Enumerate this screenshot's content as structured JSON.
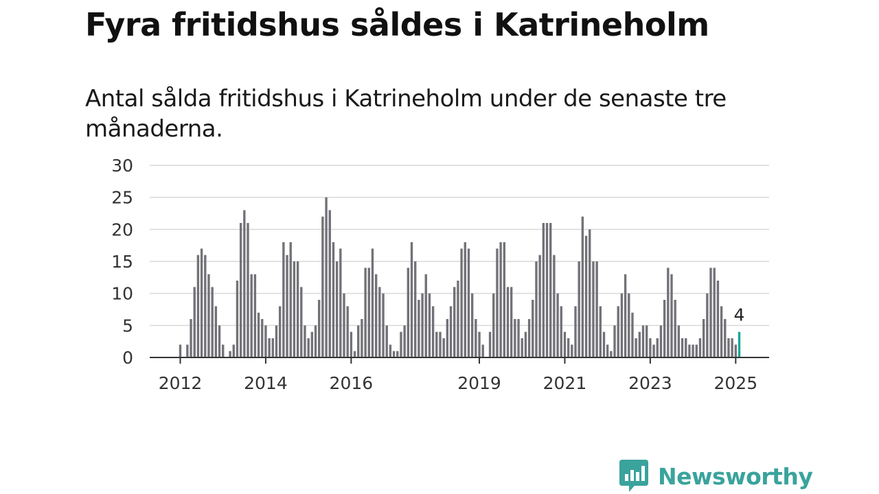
{
  "title": "Fyra fritidshus såldes i Katrineholm",
  "subtitle": "Antal sålda fritidshus i Katrineholm under de senaste tre månaderna.",
  "brand": {
    "name": "Newsworthy",
    "color": "#3aa39c"
  },
  "chart_data": {
    "type": "bar",
    "x_start": "2012-01",
    "x_end": "2025-01",
    "ylim": [
      0,
      30
    ],
    "yticks": [
      0,
      5,
      10,
      15,
      20,
      25,
      30
    ],
    "xticks": [
      "2012",
      "2014",
      "2016",
      "2019",
      "2021",
      "2023",
      "2025"
    ],
    "grid": true,
    "bar_color": "#737278",
    "highlight_color": "#1aa59a",
    "highlight_label": "4",
    "values": [
      2,
      0,
      2,
      6,
      11,
      16,
      17,
      16,
      13,
      11,
      8,
      5,
      2,
      0,
      1,
      2,
      12,
      21,
      23,
      21,
      13,
      13,
      7,
      6,
      5,
      3,
      3,
      5,
      8,
      18,
      16,
      18,
      15,
      15,
      11,
      5,
      3,
      4,
      5,
      9,
      22,
      25,
      23,
      18,
      15,
      17,
      10,
      8,
      4,
      1,
      5,
      6,
      14,
      14,
      17,
      13,
      11,
      10,
      5,
      2,
      1,
      1,
      4,
      5,
      14,
      18,
      15,
      9,
      10,
      13,
      10,
      8,
      4,
      4,
      3,
      6,
      8,
      11,
      12,
      17,
      18,
      17,
      10,
      6,
      4,
      2,
      0,
      4,
      10,
      17,
      18,
      18,
      11,
      11,
      6,
      6,
      3,
      4,
      6,
      9,
      15,
      16,
      21,
      21,
      21,
      16,
      10,
      8,
      4,
      3,
      2,
      8,
      15,
      22,
      19,
      20,
      15,
      15,
      8,
      4,
      2,
      1,
      5,
      8,
      10,
      13,
      10,
      7,
      3,
      4,
      5,
      5,
      3,
      2,
      3,
      5,
      9,
      14,
      13,
      9,
      5,
      3,
      3,
      2,
      2,
      2,
      3,
      6,
      10,
      14,
      14,
      12,
      8,
      6,
      3,
      3,
      2,
      4
    ]
  }
}
